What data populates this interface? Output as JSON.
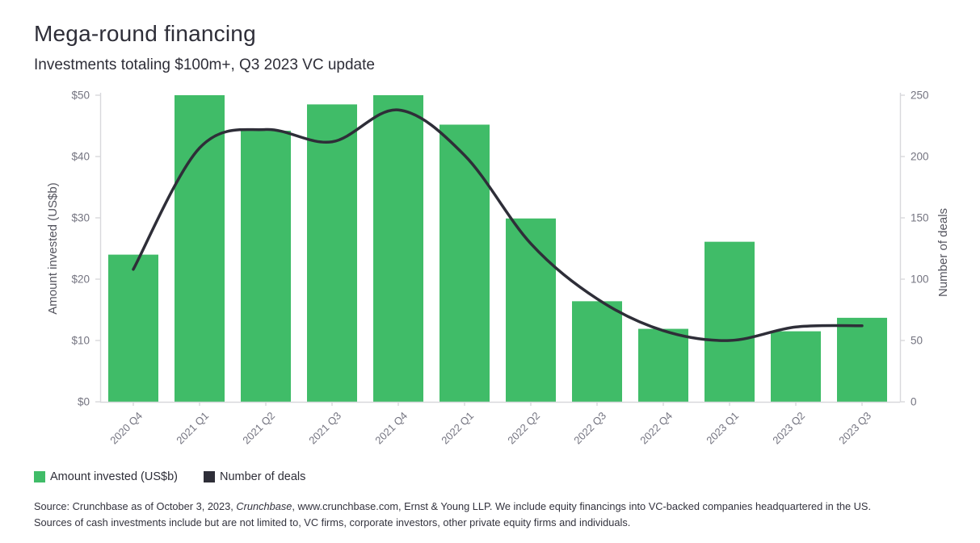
{
  "header": {
    "title": "Mega-round financing",
    "subtitle": "Investments totaling $100m+, Q3 2023 VC update"
  },
  "colors": {
    "bar": "#40bc68",
    "line": "#2e2e38",
    "axis_line": "#d8d8dc",
    "tick_text": "#747480",
    "axis_title_text": "#55555f",
    "dark_text": "#2e2e38"
  },
  "legend": {
    "items": [
      {
        "label": "Amount invested (US$b)",
        "color": "#40bc68"
      },
      {
        "label": "Number of deals",
        "color": "#2e2e38"
      }
    ]
  },
  "source": {
    "line1_prefix": "Source: Crunchbase as of October 3, 2023, ",
    "line1_italic": "Crunchbase",
    "line1_suffix": ", www.crunchbase.com, Ernst & Young LLP. We include equity financings into VC-backed companies headquartered in the US.",
    "line2": "Sources of cash investments include but are not limited to, VC firms, corporate investors, other private equity firms and individuals."
  },
  "chart_data": {
    "type": "bar+line combo",
    "categories": [
      "2020 Q4",
      "2021 Q1",
      "2021 Q2",
      "2021 Q3",
      "2021 Q4",
      "2022 Q1",
      "2022 Q2",
      "2022 Q3",
      "2022 Q4",
      "2023 Q1",
      "2023 Q2",
      "2023 Q3"
    ],
    "series": [
      {
        "name": "Amount invested (US$b)",
        "type": "bar",
        "axis": "left",
        "values": [
          24,
          50,
          44.2,
          48.5,
          50,
          45.2,
          29.9,
          16.4,
          11.9,
          26.1,
          11.5,
          13.7
        ]
      },
      {
        "name": "Number of deals",
        "type": "line",
        "axis": "right",
        "values": [
          108,
          207,
          222,
          212,
          238,
          201,
          129,
          84,
          58,
          50,
          61,
          62
        ]
      }
    ],
    "left_axis": {
      "title": "Amount invested (US$b)",
      "min": 0,
      "max": 50,
      "ticks": [
        {
          "label": "$0",
          "value": 0
        },
        {
          "label": "$10",
          "value": 10
        },
        {
          "label": "$20",
          "value": 20
        },
        {
          "label": "$30",
          "value": 30
        },
        {
          "label": "$40",
          "value": 40
        },
        {
          "label": "$50",
          "value": 50
        }
      ]
    },
    "right_axis": {
      "title": "Number of deals",
      "min": 0,
      "max": 250,
      "ticks": [
        {
          "label": "0",
          "value": 0
        },
        {
          "label": "50",
          "value": 50
        },
        {
          "label": "100",
          "value": 100
        },
        {
          "label": "150",
          "value": 150
        },
        {
          "label": "200",
          "value": 200
        },
        {
          "label": "250",
          "value": 250
        }
      ]
    },
    "grid": "off",
    "legend_position": "bottom-left"
  }
}
